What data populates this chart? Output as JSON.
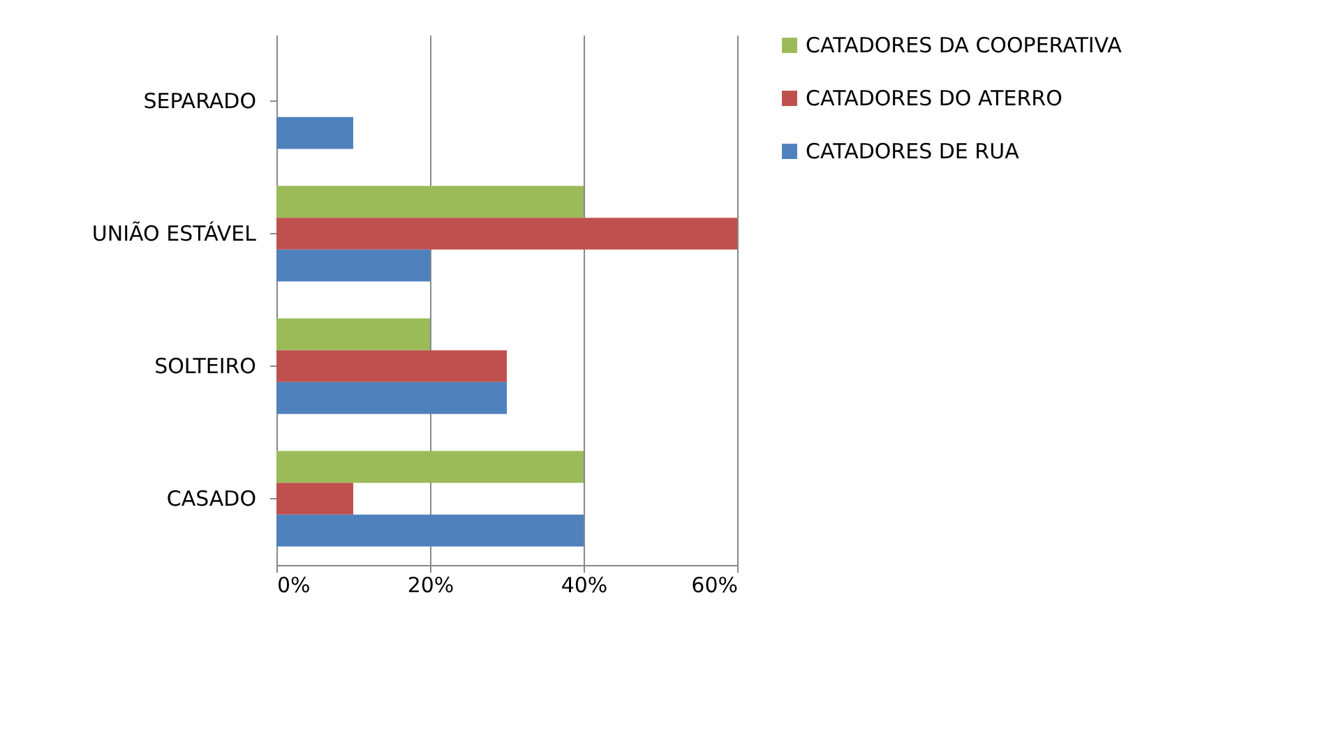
{
  "chart_data": {
    "type": "bar",
    "orientation": "horizontal",
    "categories": [
      "SEPARADO",
      "UNIÃO ESTÁVEL",
      "SOLTEIRO",
      "CASADO"
    ],
    "series": [
      {
        "name": "CATADORES DA COOPERATIVA",
        "color": "#9bbb59",
        "values": [
          0,
          40,
          20,
          40
        ]
      },
      {
        "name": "CATADORES DO ATERRO",
        "color": "#c0504d",
        "values": [
          0,
          60,
          30,
          10
        ]
      },
      {
        "name": "CATADORES DE RUA",
        "color": "#4f81bd",
        "values": [
          10,
          20,
          30,
          40
        ]
      }
    ],
    "xlim": [
      0,
      60
    ],
    "xticks": [
      {
        "value": 0,
        "label": "0%"
      },
      {
        "value": 20,
        "label": "20%"
      },
      {
        "value": 40,
        "label": "40%"
      },
      {
        "value": 60,
        "label": "60%"
      }
    ],
    "grid": "x",
    "legend": "right"
  }
}
